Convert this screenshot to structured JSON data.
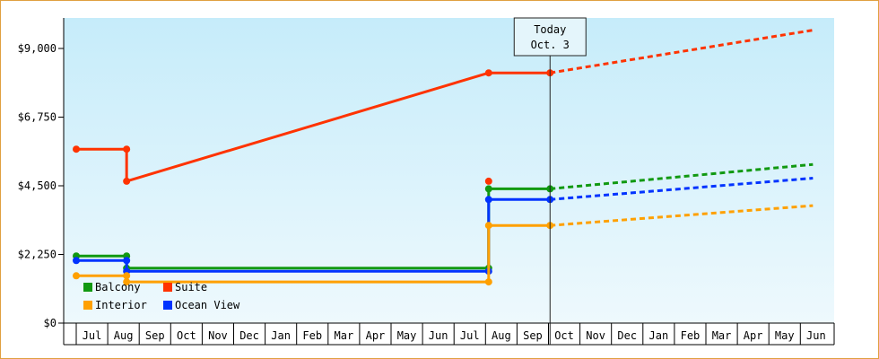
{
  "chart_data": {
    "type": "line",
    "title": "",
    "xlabel": "",
    "ylabel": "",
    "ylim": [
      0,
      10000
    ],
    "y_ticks": [
      {
        "value": 0,
        "label": "$0"
      },
      {
        "value": 2250,
        "label": "$2,250"
      },
      {
        "value": 4500,
        "label": "$4,500"
      },
      {
        "value": 6750,
        "label": "$6,750"
      },
      {
        "value": 9000,
        "label": "$9,000"
      }
    ],
    "x_categories": [
      "Jul",
      "Aug",
      "Sep",
      "Oct",
      "Nov",
      "Dec",
      "Jan",
      "Feb",
      "Mar",
      "Apr",
      "May",
      "Jun",
      "Jul",
      "Aug",
      "Sep",
      "Oct",
      "Nov",
      "Dec",
      "Jan",
      "Feb",
      "Mar",
      "Apr",
      "May",
      "Jun"
    ],
    "x_range_months": [
      -0.1,
      23.4
    ],
    "today_marker": {
      "line1": "Today",
      "line2": "Oct. 3",
      "x": 15.05
    },
    "legend": [
      {
        "name": "Balcony",
        "color": "#119911"
      },
      {
        "name": "Suite",
        "color": "#ff3300"
      },
      {
        "name": "Interior",
        "color": "#ffa000"
      },
      {
        "name": "Ocean View",
        "color": "#0033ff"
      }
    ],
    "series": [
      {
        "name": "Suite",
        "color": "#ff3300",
        "steps": [
          {
            "x": 0,
            "y": 5700
          },
          {
            "x": 1.6,
            "y": 4650
          },
          {
            "x": 13.1,
            "y": 8200
          }
        ],
        "points": [
          {
            "x": 0,
            "y": 5700
          },
          {
            "x": 1.6,
            "y": 5700
          },
          {
            "x": 1.6,
            "y": 4650
          },
          {
            "x": 13.1,
            "y": 8200
          },
          {
            "x": 15.05,
            "y": 8200
          }
        ],
        "end_x": 15.05,
        "projection": [
          {
            "x": 15.05,
            "y": 8200
          },
          {
            "x": 23.4,
            "y": 9600
          }
        ]
      },
      {
        "name": "Balcony",
        "color": "#119911",
        "steps": [
          {
            "x": 0,
            "y": 2200
          },
          {
            "x": 1.6,
            "y": 1800
          },
          {
            "x": 13.1,
            "y": 4400
          }
        ],
        "points": [
          {
            "x": 0,
            "y": 2200
          },
          {
            "x": 1.6,
            "y": 2200
          },
          {
            "x": 1.6,
            "y": 1800
          },
          {
            "x": 13.1,
            "y": 1800
          },
          {
            "x": 13.1,
            "y": 4400
          },
          {
            "x": 15.05,
            "y": 4400
          }
        ],
        "end_x": 15.05,
        "projection": [
          {
            "x": 15.05,
            "y": 4400
          },
          {
            "x": 23.4,
            "y": 5200
          }
        ]
      },
      {
        "name": "Ocean View",
        "color": "#0033ff",
        "steps": [
          {
            "x": 0,
            "y": 2050
          },
          {
            "x": 1.6,
            "y": 1700
          },
          {
            "x": 13.1,
            "y": 4050
          }
        ],
        "points": [
          {
            "x": 0,
            "y": 2050
          },
          {
            "x": 1.6,
            "y": 2050
          },
          {
            "x": 1.6,
            "y": 1700
          },
          {
            "x": 13.1,
            "y": 1700
          },
          {
            "x": 13.1,
            "y": 4050
          },
          {
            "x": 15.05,
            "y": 4050
          }
        ],
        "end_x": 15.05,
        "projection": [
          {
            "x": 15.05,
            "y": 4050
          },
          {
            "x": 23.4,
            "y": 4750
          }
        ]
      },
      {
        "name": "Interior",
        "color": "#ffa000",
        "steps": [
          {
            "x": 0,
            "y": 1550
          },
          {
            "x": 1.6,
            "y": 1350
          },
          {
            "x": 13.1,
            "y": 3200
          }
        ],
        "points": [
          {
            "x": 0,
            "y": 1550
          },
          {
            "x": 1.6,
            "y": 1550
          },
          {
            "x": 1.6,
            "y": 1350
          },
          {
            "x": 13.1,
            "y": 1350
          },
          {
            "x": 13.1,
            "y": 3200
          },
          {
            "x": 15.05,
            "y": 3200
          }
        ],
        "end_x": 15.05,
        "projection": [
          {
            "x": 15.05,
            "y": 3200
          },
          {
            "x": 23.4,
            "y": 3850
          }
        ]
      }
    ],
    "grid": false,
    "legend_position": "bottom-left"
  }
}
